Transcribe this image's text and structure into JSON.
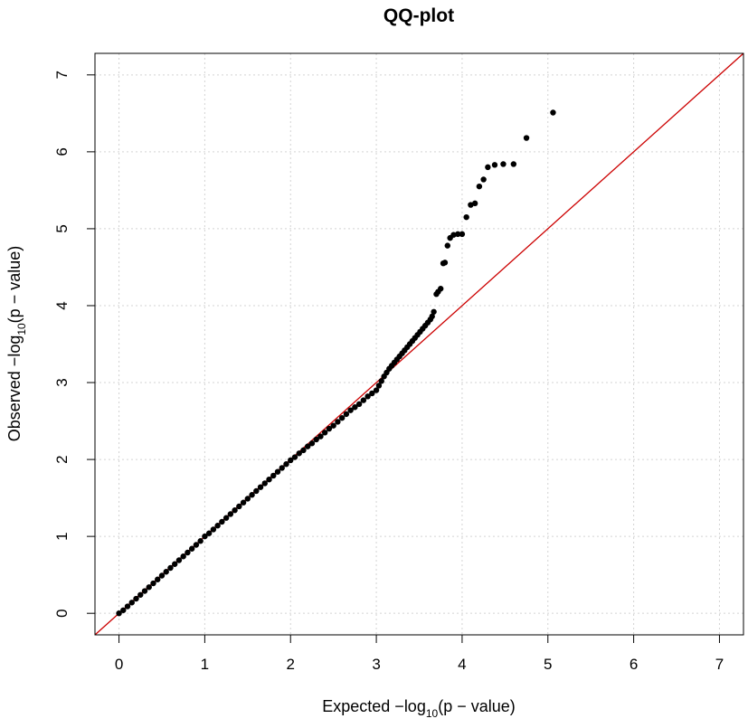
{
  "chart_data": {
    "type": "scatter",
    "title": "QQ-plot",
    "xlabel_parts": {
      "prefix": "Expected  −log",
      "sub": "10",
      "suffix": "(p − value)"
    },
    "ylabel_parts": {
      "prefix": "Observed  −log",
      "sub": "10",
      "suffix": "(p − value)"
    },
    "xlim": [
      -0.28,
      7.28
    ],
    "ylim": [
      -0.28,
      7.28
    ],
    "x_ticks": [
      "0",
      "1",
      "2",
      "3",
      "4",
      "5",
      "6",
      "7"
    ],
    "y_ticks": [
      "0",
      "1",
      "2",
      "3",
      "4",
      "5",
      "6",
      "7"
    ],
    "grid": true,
    "reference_line": {
      "slope": 1,
      "intercept": 0,
      "color": "#cc0000"
    },
    "point_color": "#000000",
    "series": [
      {
        "x": [
          0.0,
          0.05,
          0.1,
          0.15,
          0.2,
          0.25,
          0.3,
          0.35,
          0.4,
          0.45,
          0.5,
          0.55,
          0.6,
          0.65,
          0.7,
          0.75,
          0.8,
          0.85,
          0.9,
          0.95,
          1.0,
          1.05,
          1.1,
          1.15,
          1.2,
          1.25,
          1.3,
          1.35,
          1.4,
          1.45,
          1.5,
          1.55,
          1.6,
          1.65,
          1.7,
          1.75,
          1.8,
          1.85,
          1.9,
          1.95,
          2.0,
          2.05,
          2.1,
          2.15,
          2.2,
          2.25,
          2.3,
          2.35,
          2.4,
          2.45,
          2.5,
          2.55,
          2.6,
          2.65,
          2.7,
          2.75,
          2.8,
          2.85,
          2.9,
          2.95,
          3.0,
          3.03,
          3.06,
          3.09,
          3.12,
          3.15,
          3.18,
          3.21,
          3.24,
          3.27,
          3.3,
          3.33,
          3.36,
          3.39,
          3.42,
          3.45,
          3.48,
          3.51,
          3.54,
          3.57,
          3.6,
          3.63,
          3.65,
          3.67,
          3.7,
          3.72,
          3.75,
          3.78,
          3.8,
          3.83,
          3.86,
          3.9,
          3.95,
          4.0,
          4.05,
          4.1,
          4.15,
          4.2,
          4.25,
          4.3,
          4.38,
          4.48,
          4.6,
          4.75,
          5.06
        ],
        "y": [
          0.0,
          0.04,
          0.09,
          0.14,
          0.19,
          0.24,
          0.29,
          0.34,
          0.39,
          0.44,
          0.49,
          0.54,
          0.59,
          0.64,
          0.69,
          0.74,
          0.79,
          0.84,
          0.89,
          0.94,
          1.0,
          1.04,
          1.09,
          1.14,
          1.19,
          1.24,
          1.29,
          1.34,
          1.39,
          1.44,
          1.49,
          1.54,
          1.59,
          1.64,
          1.69,
          1.74,
          1.79,
          1.84,
          1.89,
          1.94,
          1.99,
          2.03,
          2.08,
          2.12,
          2.17,
          2.21,
          2.26,
          2.3,
          2.35,
          2.4,
          2.44,
          2.49,
          2.54,
          2.59,
          2.64,
          2.68,
          2.72,
          2.77,
          2.82,
          2.86,
          2.9,
          2.96,
          3.02,
          3.08,
          3.13,
          3.18,
          3.22,
          3.26,
          3.3,
          3.34,
          3.38,
          3.42,
          3.46,
          3.5,
          3.54,
          3.58,
          3.62,
          3.66,
          3.7,
          3.74,
          3.78,
          3.82,
          3.86,
          3.92,
          4.15,
          4.18,
          4.22,
          4.55,
          4.56,
          4.78,
          4.88,
          4.92,
          4.93,
          4.93,
          5.15,
          5.31,
          5.33,
          5.55,
          5.64,
          5.8,
          5.83,
          5.84,
          5.84,
          6.18,
          6.51
        ]
      }
    ]
  }
}
